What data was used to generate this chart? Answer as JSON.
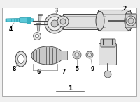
{
  "bg_color": "#f0f0f0",
  "border_color": "#aaaaaa",
  "title": "1",
  "label_fontsize": 5.5,
  "dc": "#444444",
  "hc": "#5bc8d8",
  "hc_dark": "#2a9aaa",
  "lc": "#888888",
  "gray_light": "#e0e0e0",
  "gray_mid": "#cccccc",
  "gray_dark": "#aaaaaa"
}
